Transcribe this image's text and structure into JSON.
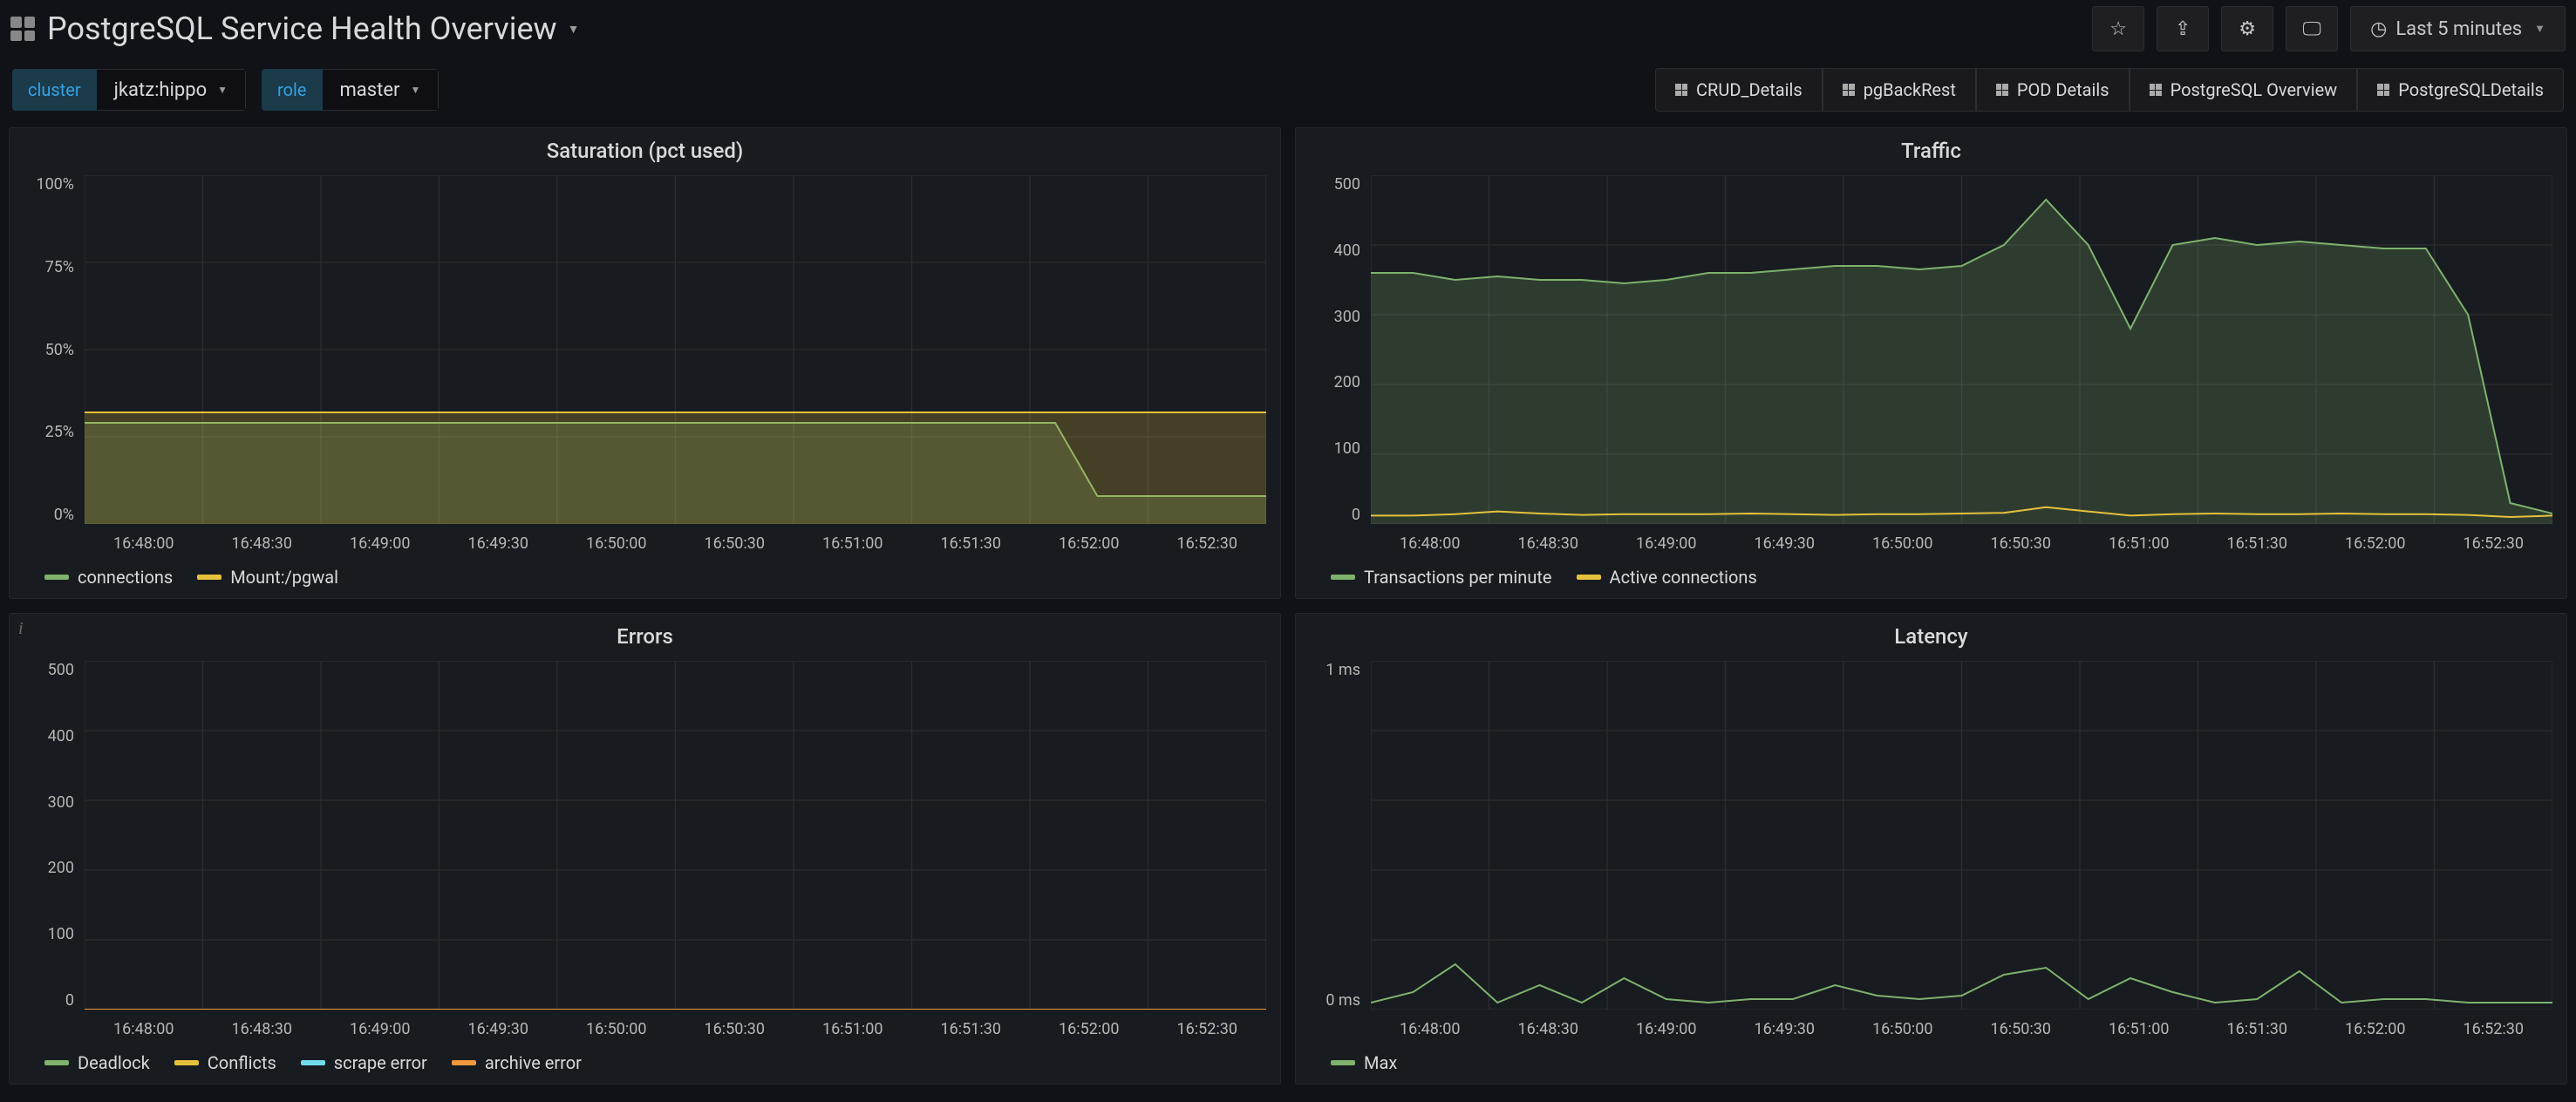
{
  "header": {
    "title": "PostgreSQL Service Health Overview",
    "time_range_label": "Last 5 minutes"
  },
  "variables": {
    "cluster": {
      "key": "cluster",
      "value": "jkatz:hippo"
    },
    "role": {
      "key": "role",
      "value": "master"
    }
  },
  "nav_links": [
    {
      "label": "CRUD_Details"
    },
    {
      "label": "pgBackRest"
    },
    {
      "label": "POD Details"
    },
    {
      "label": "PostgreSQL Overview"
    },
    {
      "label": "PostgreSQLDetails"
    }
  ],
  "theme": {
    "panel_bg": "#181b1f",
    "grid_color": "#2c2c31",
    "axis_text": "#b7b7b7",
    "green": "#7eb26d",
    "yellow": "#e5c13c",
    "cyan": "#70dbed",
    "orange": "#f2983f"
  },
  "x_ticks": [
    "16:48:00",
    "16:48:30",
    "16:49:00",
    "16:49:30",
    "16:50:00",
    "16:50:30",
    "16:51:00",
    "16:51:30",
    "16:52:00",
    "16:52:30"
  ],
  "panels": {
    "saturation": {
      "title": "Saturation (pct used)",
      "ymin": 0,
      "ymax": 100,
      "y_ticks": [
        "100%",
        "75%",
        "50%",
        "25%",
        "0%"
      ],
      "series": [
        {
          "name": "connections",
          "color": "#7eb26d",
          "fill": true,
          "values": [
            29,
            29,
            29,
            29,
            29,
            29,
            29,
            29,
            29,
            29,
            29,
            29,
            29,
            29,
            29,
            29,
            29,
            29,
            29,
            29,
            29,
            29,
            29,
            29,
            8,
            8,
            8,
            8,
            8
          ]
        },
        {
          "name": "Mount:/pgwal",
          "color": "#e5c13c",
          "fill": true,
          "values": [
            32,
            32,
            32,
            32,
            32,
            32,
            32,
            32,
            32,
            32,
            32,
            32,
            32,
            32,
            32,
            32,
            32,
            32,
            32,
            32,
            32,
            32,
            32,
            32,
            32,
            32,
            32,
            32,
            32
          ]
        }
      ],
      "legend": [
        {
          "label": "connections",
          "color": "#7eb26d"
        },
        {
          "label": "Mount:/pgwal",
          "color": "#e5c13c"
        }
      ]
    },
    "traffic": {
      "title": "Traffic",
      "ymin": 0,
      "ymax": 500,
      "y_ticks": [
        "500",
        "400",
        "300",
        "200",
        "100",
        "0"
      ],
      "series": [
        {
          "name": "Transactions per minute",
          "color": "#7eb26d",
          "fill": true,
          "values": [
            360,
            360,
            350,
            355,
            350,
            350,
            345,
            350,
            360,
            360,
            365,
            370,
            370,
            365,
            370,
            400,
            465,
            400,
            280,
            400,
            410,
            400,
            405,
            400,
            395,
            395,
            300,
            30,
            15
          ]
        },
        {
          "name": "Active connections",
          "color": "#e5c13c",
          "fill": false,
          "values": [
            12,
            12,
            14,
            18,
            15,
            13,
            14,
            14,
            14,
            15,
            14,
            13,
            14,
            14,
            15,
            16,
            24,
            18,
            12,
            14,
            15,
            14,
            14,
            15,
            14,
            14,
            13,
            10,
            12
          ]
        }
      ],
      "legend": [
        {
          "label": "Transactions per minute",
          "color": "#7eb26d"
        },
        {
          "label": "Active connections",
          "color": "#e5c13c"
        }
      ]
    },
    "errors": {
      "title": "Errors",
      "ymin": 0,
      "ymax": 500,
      "y_ticks": [
        "500",
        "400",
        "300",
        "200",
        "100",
        "0"
      ],
      "series": [
        {
          "name": "Deadlock",
          "color": "#7eb26d",
          "fill": false,
          "values": [
            0,
            0,
            0,
            0,
            0,
            0,
            0,
            0,
            0,
            0,
            0,
            0,
            0,
            0,
            0,
            0,
            0,
            0,
            0,
            0,
            0,
            0,
            0,
            0,
            0,
            0,
            0,
            0,
            0
          ]
        },
        {
          "name": "Conflicts",
          "color": "#e5c13c",
          "fill": false,
          "values": [
            0,
            0,
            0,
            0,
            0,
            0,
            0,
            0,
            0,
            0,
            0,
            0,
            0,
            0,
            0,
            0,
            0,
            0,
            0,
            0,
            0,
            0,
            0,
            0,
            0,
            0,
            0,
            0,
            0
          ]
        },
        {
          "name": "scrape error",
          "color": "#70dbed",
          "fill": false,
          "values": [
            0,
            0,
            0,
            0,
            0,
            0,
            0,
            0,
            0,
            0,
            0,
            0,
            0,
            0,
            0,
            0,
            0,
            0,
            0,
            0,
            0,
            0,
            0,
            0,
            0,
            0,
            0,
            0,
            0
          ]
        },
        {
          "name": "archive error",
          "color": "#f2983f",
          "fill": false,
          "values": [
            0,
            0,
            0,
            0,
            0,
            0,
            0,
            0,
            0,
            0,
            0,
            0,
            0,
            0,
            0,
            0,
            0,
            0,
            0,
            0,
            0,
            0,
            0,
            0,
            0,
            0,
            0,
            0,
            0
          ]
        }
      ],
      "legend": [
        {
          "label": "Deadlock",
          "color": "#7eb26d"
        },
        {
          "label": "Conflicts",
          "color": "#e5c13c"
        },
        {
          "label": "scrape error",
          "color": "#70dbed"
        },
        {
          "label": "archive error",
          "color": "#f2983f"
        }
      ]
    },
    "latency": {
      "title": "Latency",
      "ymin": 0,
      "ymax": 1,
      "y_ticks": [
        "1 ms",
        "",
        "",
        "",
        "",
        "0 ms"
      ],
      "series": [
        {
          "name": "Max",
          "color": "#7eb26d",
          "fill": false,
          "values": [
            0.02,
            0.05,
            0.13,
            0.02,
            0.07,
            0.02,
            0.09,
            0.03,
            0.02,
            0.03,
            0.03,
            0.07,
            0.04,
            0.03,
            0.04,
            0.1,
            0.12,
            0.03,
            0.09,
            0.05,
            0.02,
            0.03,
            0.11,
            0.02,
            0.03,
            0.03,
            0.02,
            0.02,
            0.02
          ]
        }
      ],
      "legend": [
        {
          "label": "Max",
          "color": "#7eb26d"
        }
      ]
    }
  }
}
